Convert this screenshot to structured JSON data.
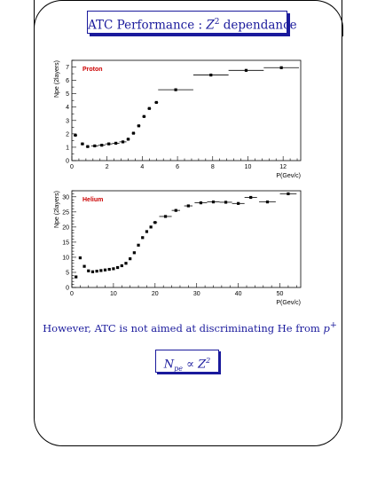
{
  "slide": {
    "title_prefix": "ATC Performance : ",
    "title_var": "Z",
    "title_exp": "2",
    "title_suffix": " dependance",
    "note_text": "However, ATC is not aimed at discriminating He from ",
    "note_var": "p",
    "note_sup": "+",
    "formula_var": "N",
    "formula_sub": "pe",
    "formula_rel": " ∝ ",
    "formula_var2": "Z",
    "formula_exp": "2"
  },
  "colors": {
    "accent": "#1a1a9c",
    "label_red": "#cc0000",
    "ink": "#000000"
  },
  "chart_data": [
    {
      "type": "scatter",
      "title": "Proton",
      "xlabel": "P(Gev/c)",
      "ylabel": "Npe (2layers)",
      "xlim": [
        0,
        13
      ],
      "ylim": [
        0,
        7.5
      ],
      "xticks": [
        0,
        2,
        4,
        6,
        8,
        10,
        12
      ],
      "yticks": [
        0,
        1,
        2,
        3,
        4,
        5,
        6,
        7
      ],
      "grid": false,
      "points": [
        {
          "x": 0.2,
          "y": 1.9,
          "xerr": 0.1
        },
        {
          "x": 0.6,
          "y": 1.25,
          "xerr": 0.1
        },
        {
          "x": 0.9,
          "y": 1.05,
          "xerr": 0.1
        },
        {
          "x": 1.3,
          "y": 1.1,
          "xerr": 0.2
        },
        {
          "x": 1.7,
          "y": 1.15,
          "xerr": 0.2
        },
        {
          "x": 2.1,
          "y": 1.25,
          "xerr": 0.2
        },
        {
          "x": 2.5,
          "y": 1.3,
          "xerr": 0.2
        },
        {
          "x": 2.9,
          "y": 1.4,
          "xerr": 0.2
        },
        {
          "x": 3.2,
          "y": 1.6,
          "xerr": 0.1
        },
        {
          "x": 3.5,
          "y": 2.05,
          "xerr": 0.1
        },
        {
          "x": 3.8,
          "y": 2.6,
          "xerr": 0.1
        },
        {
          "x": 4.1,
          "y": 3.3,
          "xerr": 0.1
        },
        {
          "x": 4.4,
          "y": 3.9,
          "xerr": 0.1
        },
        {
          "x": 4.8,
          "y": 4.35,
          "xerr": 0.1
        },
        {
          "x": 5.9,
          "y": 5.3,
          "xerr": 1.0
        },
        {
          "x": 7.9,
          "y": 6.4,
          "xerr": 1.0
        },
        {
          "x": 9.9,
          "y": 6.75,
          "xerr": 1.0
        },
        {
          "x": 11.9,
          "y": 6.95,
          "xerr": 1.0
        }
      ]
    },
    {
      "type": "scatter",
      "title": "Helium",
      "xlabel": "P(Gev/c)",
      "ylabel": "Npe (2layers)",
      "xlim": [
        0,
        55
      ],
      "ylim": [
        0,
        32
      ],
      "xticks": [
        0,
        10,
        20,
        30,
        40,
        50
      ],
      "yticks": [
        0,
        5,
        10,
        15,
        20,
        25,
        30
      ],
      "grid": false,
      "points": [
        {
          "x": 1.0,
          "y": 3.5,
          "xerr": 0.3
        },
        {
          "x": 2.0,
          "y": 9.8,
          "xerr": 0.3
        },
        {
          "x": 3.0,
          "y": 7.0,
          "xerr": 0.3
        },
        {
          "x": 4.0,
          "y": 5.5,
          "xerr": 0.3
        },
        {
          "x": 5.0,
          "y": 5.2,
          "xerr": 0.3
        },
        {
          "x": 6.0,
          "y": 5.4,
          "xerr": 0.3
        },
        {
          "x": 7.0,
          "y": 5.6,
          "xerr": 0.3
        },
        {
          "x": 8.0,
          "y": 5.8,
          "xerr": 0.3
        },
        {
          "x": 9.0,
          "y": 6.0,
          "xerr": 0.3
        },
        {
          "x": 10.0,
          "y": 6.2,
          "xerr": 0.3
        },
        {
          "x": 11.0,
          "y": 6.6,
          "xerr": 0.3
        },
        {
          "x": 12.0,
          "y": 7.2,
          "xerr": 0.3
        },
        {
          "x": 13.0,
          "y": 8.0,
          "xerr": 0.3
        },
        {
          "x": 14.0,
          "y": 9.5,
          "xerr": 0.3
        },
        {
          "x": 15.0,
          "y": 11.5,
          "xerr": 0.3
        },
        {
          "x": 16.0,
          "y": 14.0,
          "xerr": 0.3
        },
        {
          "x": 17.0,
          "y": 16.5,
          "xerr": 0.3
        },
        {
          "x": 18.0,
          "y": 18.5,
          "xerr": 0.3
        },
        {
          "x": 19.0,
          "y": 20.0,
          "xerr": 0.3
        },
        {
          "x": 20.0,
          "y": 21.5,
          "xerr": 0.5
        },
        {
          "x": 22.5,
          "y": 23.5,
          "xerr": 1.5
        },
        {
          "x": 25.0,
          "y": 25.5,
          "xerr": 1.0
        },
        {
          "x": 28.0,
          "y": 27.0,
          "xerr": 1.0
        },
        {
          "x": 31.0,
          "y": 28.0,
          "xerr": 1.5
        },
        {
          "x": 34.0,
          "y": 28.3,
          "xerr": 1.5
        },
        {
          "x": 37.0,
          "y": 28.2,
          "xerr": 1.5
        },
        {
          "x": 40.0,
          "y": 27.8,
          "xerr": 1.5
        },
        {
          "x": 43.0,
          "y": 29.8,
          "xerr": 1.5
        },
        {
          "x": 47.0,
          "y": 28.3,
          "xerr": 2.0
        },
        {
          "x": 52.0,
          "y": 31.0,
          "xerr": 2.0
        }
      ]
    }
  ]
}
